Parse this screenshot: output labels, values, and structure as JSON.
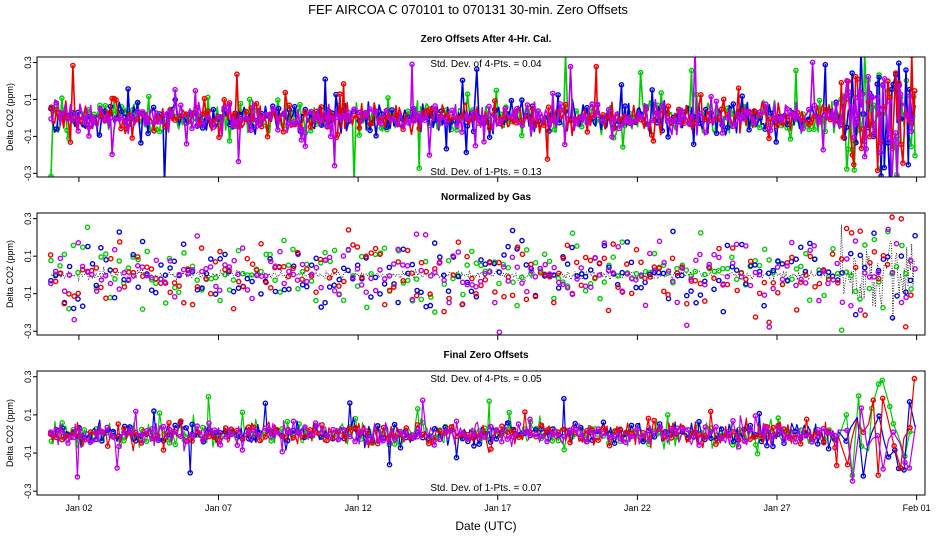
{
  "figure": {
    "title": "FEF   AIRCOA C   070101 to 070131   30-min. Zero Offsets",
    "xlabel": "Date (UTC)"
  },
  "chart_data": [
    {
      "type": "line",
      "title": "Zero Offsets After 4-Hr. Cal.",
      "xlabel": "Date (UTC)",
      "ylabel": "Delta CO2 (ppm)",
      "xlim": [
        -0.5,
        31.3
      ],
      "ylim": [
        -0.32,
        0.33
      ],
      "x_ticks": [
        {
          "v": 1,
          "label": "Jan 02"
        },
        {
          "v": 6,
          "label": "Jan 07"
        },
        {
          "v": 11,
          "label": "Jan 12"
        },
        {
          "v": 16,
          "label": "Jan 17"
        },
        {
          "v": 21,
          "label": "Jan 22"
        },
        {
          "v": 26,
          "label": "Jan 27"
        },
        {
          "v": 31,
          "label": "Feb 01"
        }
      ],
      "y_ticks": [
        {
          "v": -0.3,
          "label": "-0.3"
        },
        {
          "v": -0.1,
          "label": "-0.1"
        },
        {
          "v": 0.1,
          "label": "0.1"
        },
        {
          "v": 0.3,
          "label": "0.3"
        }
      ],
      "annotations": [
        "Std. Dev. of 4-Pts. = 0.04",
        "Std. Dev. of 1-Pts. = 0.13"
      ],
      "series_colors": [
        "#00cc00",
        "#0000dd",
        "#ee0000",
        "#bb00ee"
      ],
      "x_range": [
        0,
        30.95
      ],
      "n_points": 480,
      "noise": {
        "base_sd": 0.075,
        "late_sd": 0.25,
        "late_start_day": 28.3,
        "spike_prob": 0.06,
        "spike_sd": 0.14
      },
      "style": "thick",
      "black_dots": false,
      "note": "Four gas series (green, blue, red, purple) of ~30-minute zero offsets, mostly within -0.3 to 0.3 ppm; scatter widens sharply after Jan 29."
    },
    {
      "type": "scatter",
      "title": "Normalized by Gas",
      "xlabel": "Date (UTC)",
      "ylabel": "Delta CO2 (ppm)",
      "xlim": [
        -0.5,
        31.3
      ],
      "ylim": [
        -0.32,
        0.33
      ],
      "x_ticks": [
        {
          "v": 1,
          "label": "Jan 02"
        },
        {
          "v": 6,
          "label": "Jan 07"
        },
        {
          "v": 11,
          "label": "Jan 12"
        },
        {
          "v": 16,
          "label": "Jan 17"
        },
        {
          "v": 21,
          "label": "Jan 22"
        },
        {
          "v": 26,
          "label": "Jan 27"
        },
        {
          "v": 31,
          "label": "Feb 01"
        }
      ],
      "y_ticks": [
        {
          "v": -0.3,
          "label": "-0.3"
        },
        {
          "v": -0.1,
          "label": "-0.1"
        },
        {
          "v": 0.1,
          "label": "0.1"
        },
        {
          "v": 0.3,
          "label": "0.3"
        }
      ],
      "annotations": [],
      "series_colors": [
        "#00cc00",
        "#0000dd",
        "#ee0000",
        "#bb00ee"
      ],
      "x_range": [
        0,
        30.95
      ],
      "n_points": 190,
      "noise": {
        "base_sd": 0.16,
        "late_sd": 0.3,
        "late_start_day": 28.3,
        "spike_prob": 0.0,
        "spike_sd": 0.0
      },
      "style": "points",
      "black_dots": true,
      "baseline": 0.0,
      "note": "Per-gas normalized offsets; black dotted baseline near 0 ppm with sparse colored points spread over the full range."
    },
    {
      "type": "line",
      "title": "Final Zero Offsets",
      "xlabel": "Date (UTC)",
      "ylabel": "Delta CO2 (ppm)",
      "xlim": [
        -0.5,
        31.3
      ],
      "ylim": [
        -0.32,
        0.33
      ],
      "x_ticks": [
        {
          "v": 1,
          "label": "Jan 02"
        },
        {
          "v": 6,
          "label": "Jan 07"
        },
        {
          "v": 11,
          "label": "Jan 12"
        },
        {
          "v": 16,
          "label": "Jan 17"
        },
        {
          "v": 21,
          "label": "Jan 22"
        },
        {
          "v": 26,
          "label": "Jan 27"
        },
        {
          "v": 31,
          "label": "Feb 01"
        }
      ],
      "y_ticks": [
        {
          "v": -0.3,
          "label": "-0.3"
        },
        {
          "v": -0.1,
          "label": "-0.1"
        },
        {
          "v": 0.1,
          "label": "0.1"
        },
        {
          "v": 0.3,
          "label": "0.3"
        }
      ],
      "annotations": [
        "Std. Dev. of 4-Pts. = 0.05",
        "Std. Dev. of 1-Pts. = 0.07"
      ],
      "series_colors": [
        "#00cc00",
        "#0000dd",
        "#ee0000",
        "#bb00ee"
      ],
      "x_range": [
        0,
        28.2
      ],
      "late_x_range": [
        28.5,
        30.95
      ],
      "n_points": 420,
      "n_late_points": 14,
      "noise": {
        "base_sd": 0.055,
        "late_sd": 0.18,
        "late_start_day": 28.3,
        "spike_prob": 0.03,
        "spike_sd": 0.1
      },
      "style": "thin",
      "black_dots": false,
      "note": "Final offsets tightly clustered around 0 ppm through Jan 28; sparse, larger excursions Jan 29 to Feb 01."
    }
  ]
}
